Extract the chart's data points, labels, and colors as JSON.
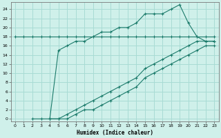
{
  "xlabel": "Humidex (Indice chaleur)",
  "bg_color": "#cff0ea",
  "grid_color": "#a8dbd4",
  "line_color": "#1a7a6a",
  "xlim": [
    -0.5,
    23.5
  ],
  "ylim": [
    -0.5,
    25.5
  ],
  "xticks": [
    0,
    1,
    2,
    3,
    4,
    5,
    6,
    7,
    8,
    9,
    10,
    11,
    12,
    13,
    14,
    15,
    16,
    17,
    18,
    19,
    20,
    21,
    22,
    23
  ],
  "yticks": [
    0,
    2,
    4,
    6,
    8,
    10,
    12,
    14,
    16,
    18,
    20,
    22,
    24
  ],
  "line1_x": [
    0,
    1,
    2,
    3,
    4,
    5,
    6,
    7,
    8,
    9,
    10,
    11,
    12,
    13,
    14,
    15,
    16,
    17,
    18,
    19,
    20,
    21,
    22,
    23
  ],
  "line1_y": [
    18,
    18,
    18,
    18,
    18,
    18,
    18,
    18,
    18,
    18,
    18,
    18,
    18,
    18,
    18,
    18,
    18,
    18,
    18,
    18,
    18,
    18,
    18,
    18
  ],
  "line2_x": [
    2,
    3,
    4,
    5,
    6,
    7,
    8,
    9,
    10,
    11,
    12,
    13,
    14,
    15,
    16,
    17,
    18,
    19,
    20,
    21,
    22,
    23
  ],
  "line2_y": [
    0,
    0,
    0,
    15,
    16,
    17,
    17,
    18,
    19,
    19,
    20,
    20,
    21,
    23,
    23,
    23,
    24,
    25,
    21,
    18,
    17,
    17
  ],
  "line3_x": [
    4,
    5,
    6,
    7,
    8,
    9,
    10,
    11,
    12,
    13,
    14,
    15,
    16,
    17,
    18,
    19,
    20,
    21,
    22,
    23
  ],
  "line3_y": [
    0,
    0,
    1,
    2,
    3,
    4,
    5,
    6,
    7,
    8,
    9,
    11,
    12,
    13,
    14,
    15,
    16,
    17,
    17,
    17
  ],
  "line4_x": [
    4,
    5,
    6,
    7,
    8,
    9,
    10,
    11,
    12,
    13,
    14,
    15,
    16,
    17,
    18,
    19,
    20,
    21,
    22,
    23
  ],
  "line4_y": [
    0,
    0,
    0,
    1,
    2,
    2,
    3,
    4,
    5,
    6,
    7,
    9,
    10,
    11,
    12,
    13,
    14,
    15,
    16,
    16
  ]
}
